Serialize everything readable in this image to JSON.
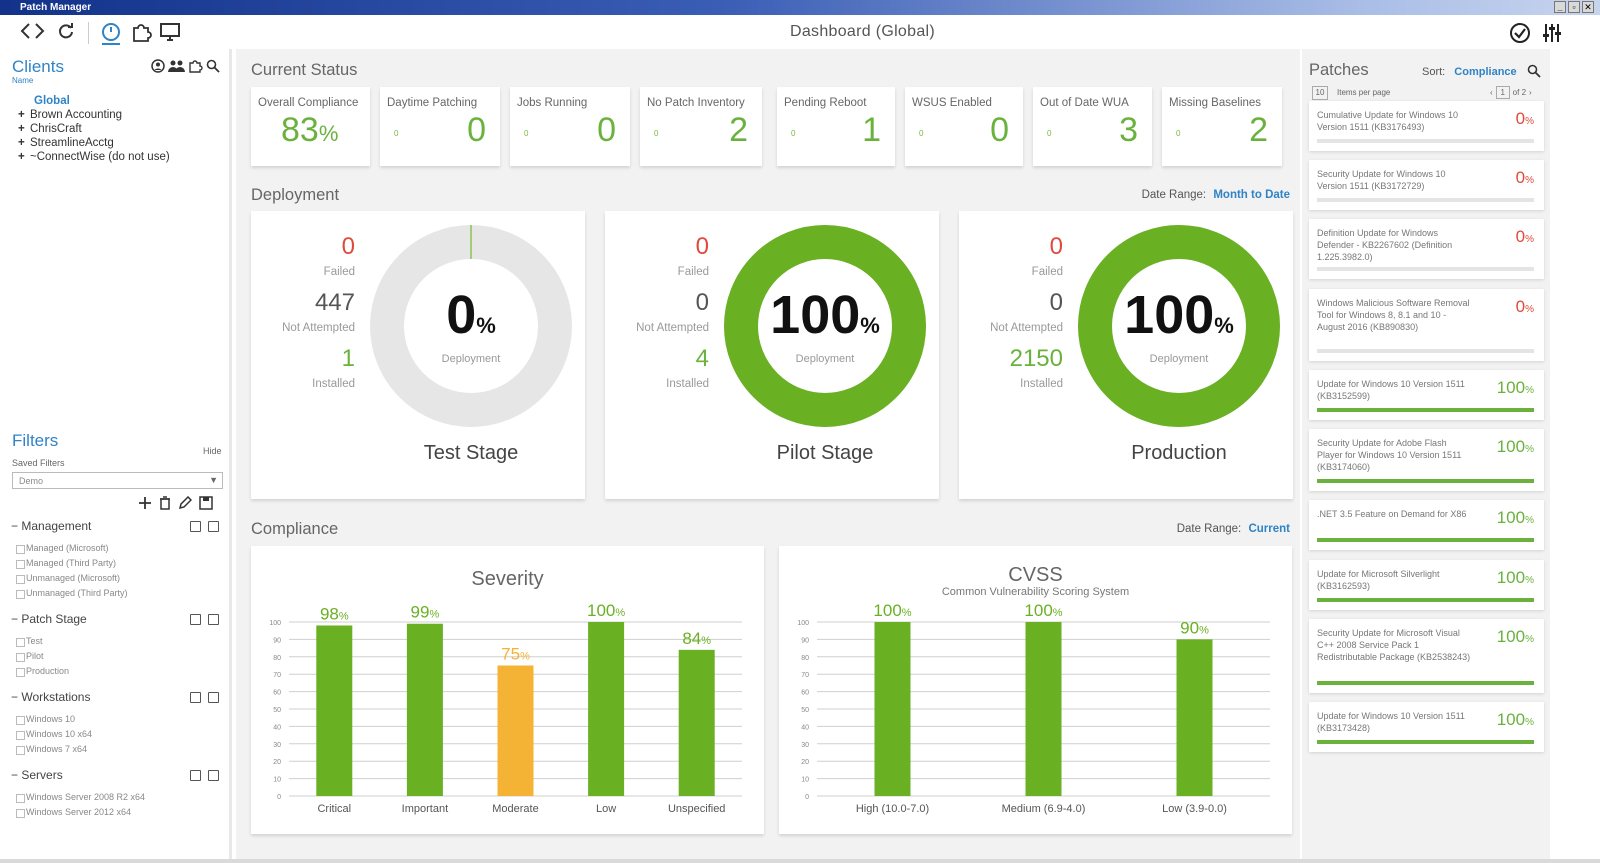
{
  "window": {
    "title": "Patch Manager"
  },
  "toolbar": {
    "title": "Dashboard (Global)"
  },
  "clients": {
    "title": "Clients",
    "subtitle": "Name",
    "tree": [
      {
        "label": "Global",
        "selected": true
      },
      {
        "label": "Brown Accounting",
        "expandable": true
      },
      {
        "label": "ChrisCraft",
        "expandable": true
      },
      {
        "label": "StreamlineAcctg",
        "expandable": true
      },
      {
        "label": "~ConnectWise (do not use)",
        "expandable": true
      }
    ]
  },
  "filters": {
    "title": "Filters",
    "hide_label": "Hide",
    "saved_label": "Saved Filters",
    "saved_value": "Demo",
    "sections": [
      {
        "name": "Management",
        "items": [
          "Managed (Microsoft)",
          "Managed (Third Party)",
          "Unmanaged (Microsoft)",
          "Unmanaged (Third Party)"
        ]
      },
      {
        "name": "Patch Stage",
        "items": [
          "Test",
          "Pilot",
          "Production"
        ]
      },
      {
        "name": "Workstations",
        "items": [
          "Windows 10",
          "Windows 10 x64",
          "Windows 7 x64"
        ]
      },
      {
        "name": "Servers",
        "items": [
          "Windows Server 2008 R2 x64",
          "Windows Server 2012 x64"
        ]
      }
    ]
  },
  "current_status": {
    "title": "Current Status",
    "cards": [
      {
        "label": "Overall Compliance",
        "value": "83",
        "unit": "%",
        "small": ""
      },
      {
        "label": "Daytime Patching",
        "value": "0",
        "small": "0"
      },
      {
        "label": "Jobs Running",
        "value": "0",
        "small": "0"
      },
      {
        "label": "No Patch Inventory",
        "value": "2",
        "small": "0"
      },
      {
        "label": "Pending Reboot",
        "value": "1",
        "small": "0"
      },
      {
        "label": "WSUS Enabled",
        "value": "0",
        "small": "0"
      },
      {
        "label": "Out of Date WUA",
        "value": "3",
        "small": "0"
      },
      {
        "label": "Missing Baselines",
        "value": "2",
        "small": "0"
      }
    ]
  },
  "deployment": {
    "title": "Deployment",
    "date_range_label": "Date Range:",
    "date_range_value": "Month to Date",
    "failed_label": "Failed",
    "not_attempted_label": "Not Attempted",
    "installed_label": "Installed",
    "deployment_label": "Deployment",
    "stages": [
      {
        "name": "Test Stage",
        "failed": "0",
        "not_attempted": "447",
        "installed": "1",
        "percent": "0",
        "percent_value": 0
      },
      {
        "name": "Pilot Stage",
        "failed": "0",
        "not_attempted": "0",
        "installed": "4",
        "percent": "100",
        "percent_value": 100
      },
      {
        "name": "Production",
        "failed": "0",
        "not_attempted": "0",
        "installed": "2150",
        "percent": "100",
        "percent_value": 100
      }
    ]
  },
  "compliance": {
    "title": "Compliance",
    "date_range_label": "Date Range:",
    "date_range_value": "Current"
  },
  "chart_data": [
    {
      "type": "bar",
      "title": "Severity",
      "categories": [
        "Critical",
        "Important",
        "Moderate",
        "Low",
        "Unspecified"
      ],
      "values": [
        98,
        99,
        75,
        100,
        84
      ],
      "colors": [
        "#6ab023",
        "#6ab023",
        "#f5b335",
        "#6ab023",
        "#6ab023"
      ],
      "ylim": [
        0,
        100
      ],
      "yticks": [
        0,
        10,
        20,
        30,
        40,
        50,
        60,
        70,
        80,
        90,
        100
      ],
      "grid": true
    },
    {
      "type": "bar",
      "title": "CVSS",
      "subtitle": "Common Vulnerability Scoring System",
      "categories": [
        "High (10.0-7.0)",
        "Medium (6.9-4.0)",
        "Low (3.9-0.0)"
      ],
      "values": [
        100,
        100,
        90
      ],
      "colors": [
        "#6ab023",
        "#6ab023",
        "#6ab023"
      ],
      "ylim": [
        0,
        100
      ],
      "yticks": [
        0,
        10,
        20,
        30,
        40,
        50,
        60,
        70,
        80,
        90,
        100
      ],
      "grid": true
    }
  ],
  "patches": {
    "title": "Patches",
    "sort_label": "Sort:",
    "sort_value": "Compliance",
    "items_per_page": "10",
    "items_per_page_label": "Items per page",
    "page": "1",
    "of_pages": "of 2",
    "items": [
      {
        "name": "Cumulative Update for Windows 10 Version 1511 (KB3176493)",
        "percent": "0",
        "value": 0
      },
      {
        "name": "Security Update for Windows 10 Version 1511 (KB3172729)",
        "percent": "0",
        "value": 0
      },
      {
        "name": "Definition Update for Windows Defender - KB2267602 (Definition 1.225.3982.0)",
        "percent": "0",
        "value": 0
      },
      {
        "name": "Windows Malicious Software Removal Tool for Windows 8, 8.1 and 10 - August 2016 (KB890830)",
        "percent": "0",
        "value": 0
      },
      {
        "name": "Update for Windows 10 Version 1511 (KB3152599)",
        "percent": "100",
        "value": 100
      },
      {
        "name": "Security Update for Adobe Flash Player for Windows 10 Version 1511 (KB3174060)",
        "percent": "100",
        "value": 100
      },
      {
        "name": ".NET 3.5 Feature on Demand for X86",
        "percent": "100",
        "value": 100
      },
      {
        "name": "Update for Microsoft Silverlight (KB3162593)",
        "percent": "100",
        "value": 100
      },
      {
        "name": "Security Update for Microsoft Visual C++ 2008 Service Pack 1 Redistributable Package (KB2538243)",
        "percent": "100",
        "value": 100
      },
      {
        "name": "Update for Windows 10 Version 1511 (KB3173428)",
        "percent": "100",
        "value": 100
      }
    ]
  },
  "icons": {
    "back": "chevron-left-icon",
    "forward": "chevron-right-icon",
    "refresh": "refresh-icon",
    "dashboard": "dashboard-icon",
    "patches": "puzzle-icon",
    "monitor": "monitor-icon",
    "check": "check-circle-icon",
    "settings": "sliders-icon"
  }
}
